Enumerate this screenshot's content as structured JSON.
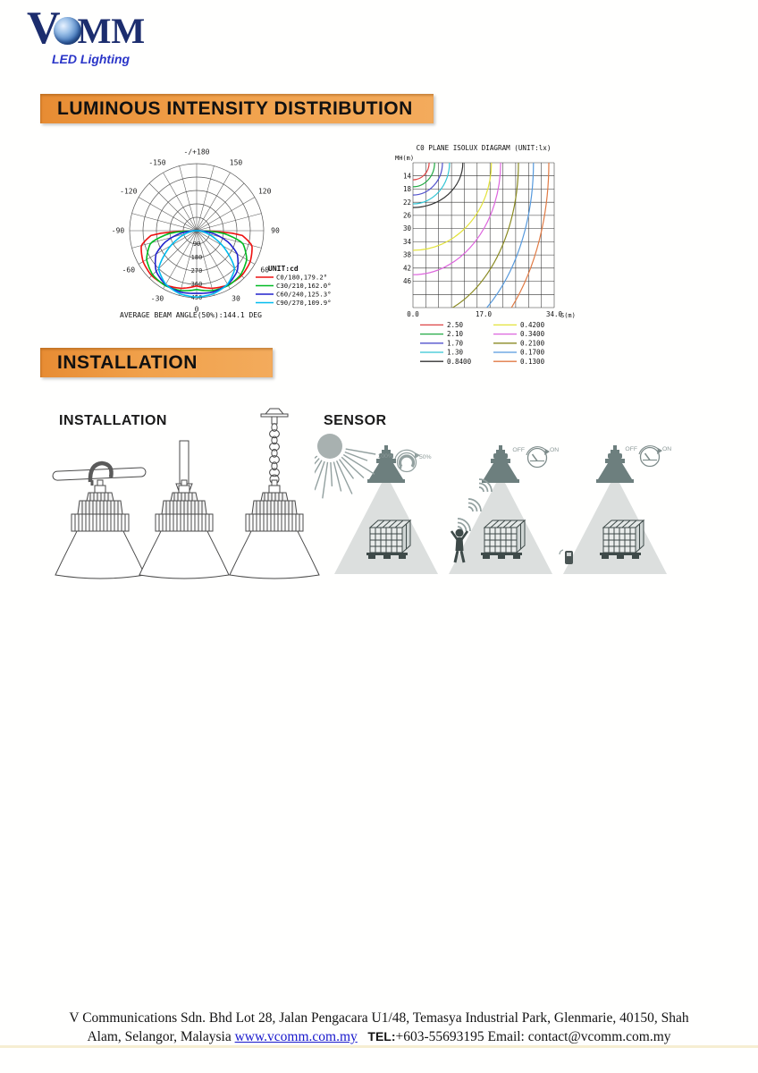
{
  "logo": {
    "brand_v": "V",
    "brand_rest": "MM",
    "tagline": "LED Lighting"
  },
  "banners": {
    "luminous": "LUMINOUS INTENSITY DISTRIBUTION",
    "installation": "INSTALLATION"
  },
  "section_labels": {
    "installation": "INSTALLATION",
    "sensor": "SENSOR"
  },
  "sensor_icons": {
    "dim_full": "100%",
    "dim_half": "50%",
    "off": "OFF",
    "on": "ON"
  },
  "chart_data": [
    {
      "type": "polar",
      "unit_label": "UNIT:cd",
      "rmax": 450,
      "angle_labels": [
        {
          "a": 180,
          "t": "-/+180"
        },
        {
          "a": -150,
          "t": "-150"
        },
        {
          "a": 150,
          "t": "150"
        },
        {
          "a": -120,
          "t": "-120"
        },
        {
          "a": 120,
          "t": "120"
        },
        {
          "a": -90,
          "t": "-90"
        },
        {
          "a": 90,
          "t": "90"
        },
        {
          "a": -60,
          "t": "-60"
        },
        {
          "a": 60,
          "t": "60"
        },
        {
          "a": -30,
          "t": "-30"
        },
        {
          "a": 30,
          "t": "30"
        },
        {
          "a": 0,
          "t": "0"
        }
      ],
      "radial_ticks": [
        90,
        180,
        270,
        360,
        450
      ],
      "series": [
        {
          "name": "C0/180,179.2°",
          "color": "#ee1111",
          "points": [
            [
              0,
              370
            ],
            [
              15,
              400
            ],
            [
              30,
              420
            ],
            [
              45,
              427
            ],
            [
              60,
              415
            ],
            [
              75,
              385
            ],
            [
              85,
              300
            ],
            [
              90,
              0
            ]
          ]
        },
        {
          "name": "C30/210,162.0°",
          "color": "#00bb22",
          "points": [
            [
              0,
              395
            ],
            [
              15,
              415
            ],
            [
              30,
              425
            ],
            [
              45,
              418
            ],
            [
              60,
              388
            ],
            [
              75,
              320
            ],
            [
              85,
              170
            ],
            [
              90,
              0
            ]
          ]
        },
        {
          "name": "C60/240,125.3°",
          "color": "#2222cc",
          "points": [
            [
              0,
              420
            ],
            [
              15,
              426
            ],
            [
              30,
              418
            ],
            [
              45,
              385
            ],
            [
              60,
              315
            ],
            [
              70,
              225
            ],
            [
              80,
              115
            ],
            [
              90,
              0
            ]
          ]
        },
        {
          "name": "C90/270,109.9°",
          "color": "#00bbee",
          "points": [
            [
              0,
              445
            ],
            [
              15,
              438
            ],
            [
              30,
              415
            ],
            [
              45,
              362
            ],
            [
              55,
              250
            ],
            [
              65,
              150
            ],
            [
              75,
              75
            ],
            [
              90,
              0
            ]
          ]
        }
      ],
      "footnote": "AVERAGE BEAM ANGLE(50%):144.1 DEG"
    },
    {
      "type": "isolux",
      "title": "C0 PLANE ISOLUX DIAGRAM (UNIT:lx)",
      "y_axis_label": "MH(m)",
      "x_axis_label": "S(m)",
      "y_ticks": [
        "14",
        "18",
        "22",
        "26",
        "30",
        "34",
        "38",
        "42",
        "46"
      ],
      "x_ticks": [
        "0.0",
        "17.0",
        "34.0"
      ],
      "x_range": [
        0,
        34
      ],
      "y_range": [
        10,
        54
      ],
      "contours": [
        {
          "lux": "2.50",
          "color": "#dd4444",
          "rx_m": 3.9,
          "ry_m": 5.2
        },
        {
          "lux": "2.10",
          "color": "#22aa44",
          "rx_m": 5.2,
          "ry_m": 7.3
        },
        {
          "lux": "1.70",
          "color": "#5050cc",
          "rx_m": 7.1,
          "ry_m": 9.8
        },
        {
          "lux": "1.30",
          "color": "#33c5d5",
          "rx_m": 8.8,
          "ry_m": 12.5
        },
        {
          "lux": "0.8400",
          "color": "#333333",
          "rx_m": 12.0,
          "ry_m": 13.6
        },
        {
          "lux": "0.4200",
          "color": "#e2e23a",
          "rx_m": 18.9,
          "ry_m": 26.6
        },
        {
          "lux": "0.3400",
          "color": "#dd66dd",
          "rx_m": 21.1,
          "ry_m": 34.0
        },
        {
          "lux": "0.2100",
          "color": "#8a8a22",
          "rx_m": 25.4,
          "ry_m": 47.5
        },
        {
          "lux": "0.1700",
          "color": "#5599dd",
          "rx_m": 29.0,
          "ry_m": 55.7
        },
        {
          "lux": "0.1300",
          "color": "#e07a44",
          "rx_m": 32.7,
          "ry_m": 63.9
        }
      ]
    }
  ],
  "footer": {
    "line1": "V  Communications  Sdn.  Bhd    Lot 28, Jalan Pengacara U1/48, Temasya Industrial Park, Glenmarie, 40150, Shah",
    "line2_prefix": "Alam, Selangor, Malaysia ",
    "link": "www.vcomm.com.my",
    "tel_label": "TEL:",
    "line2_suffix": "+603-55693195 Email: contact@vcomm.com.my"
  }
}
